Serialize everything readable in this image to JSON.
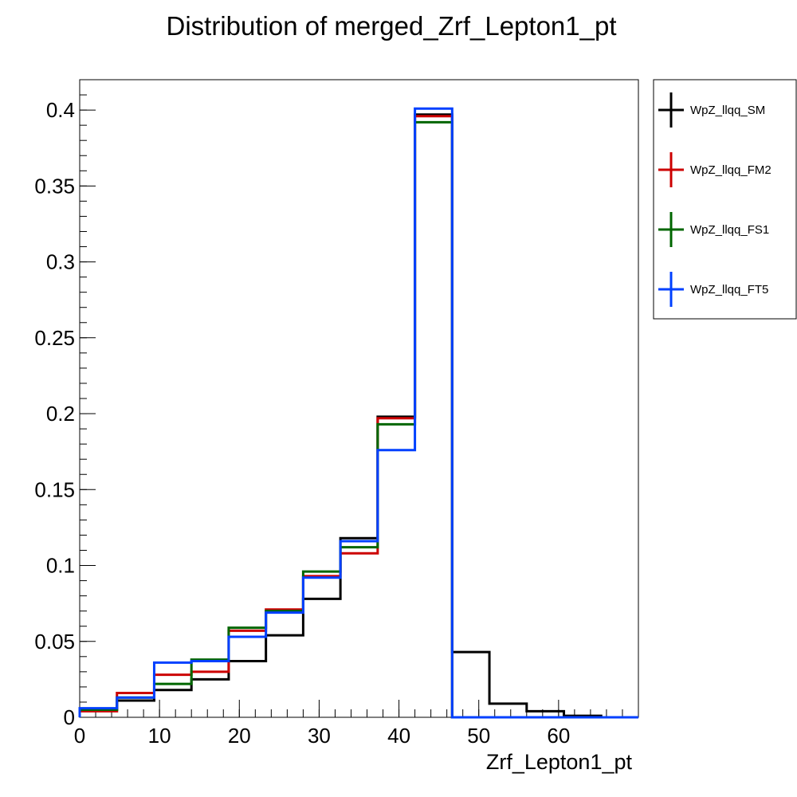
{
  "chart_data": {
    "type": "step-histogram",
    "title": "Distribution of merged_Zrf_Lepton1_pt",
    "xlabel": "Zrf_Lepton1_pt",
    "ylabel": "",
    "xlim": [
      0,
      70
    ],
    "ylim": [
      0,
      0.42
    ],
    "bin_edges": [
      0,
      4.667,
      9.333,
      14,
      18.667,
      23.333,
      28,
      32.667,
      37.333,
      42,
      46.667,
      51.333,
      56,
      60.667,
      65.333,
      70
    ],
    "x_ticks": [
      "0",
      "10",
      "20",
      "30",
      "40",
      "50",
      "60"
    ],
    "x_tick_values": [
      0,
      10,
      20,
      30,
      40,
      50,
      60
    ],
    "y_ticks": [
      "0",
      "0.05",
      "0.1",
      "0.15",
      "0.2",
      "0.25",
      "0.3",
      "0.35",
      "0.4"
    ],
    "y_tick_values": [
      0,
      0.05,
      0.1,
      0.15,
      0.2,
      0.25,
      0.3,
      0.35,
      0.4
    ],
    "legend_position": "right, outside plot",
    "series": [
      {
        "name": "WpZ_llqq_SM",
        "color": "#000000",
        "values": [
          0.005,
          0.011,
          0.018,
          0.025,
          0.037,
          0.054,
          0.078,
          0.118,
          0.198,
          0.397,
          0.043,
          0.009,
          0.004,
          0.001,
          0.0
        ]
      },
      {
        "name": "WpZ_llqq_FM2",
        "color": "#cc0000",
        "values": [
          0.004,
          0.016,
          0.028,
          0.03,
          0.057,
          0.071,
          0.093,
          0.108,
          0.197,
          0.396,
          0.0,
          0.0,
          0.0,
          0.0,
          0.0
        ]
      },
      {
        "name": "WpZ_llqq_FS1",
        "color": "#006600",
        "values": [
          0.005,
          0.013,
          0.022,
          0.038,
          0.059,
          0.07,
          0.096,
          0.112,
          0.193,
          0.392,
          0.0,
          0.0,
          0.0,
          0.0,
          0.0
        ]
      },
      {
        "name": "WpZ_llqq_FT5",
        "color": "#0040ff",
        "values": [
          0.006,
          0.013,
          0.036,
          0.037,
          0.053,
          0.069,
          0.092,
          0.116,
          0.176,
          0.401,
          0.0,
          0.0,
          0.0,
          0.0,
          0.0
        ]
      }
    ]
  }
}
